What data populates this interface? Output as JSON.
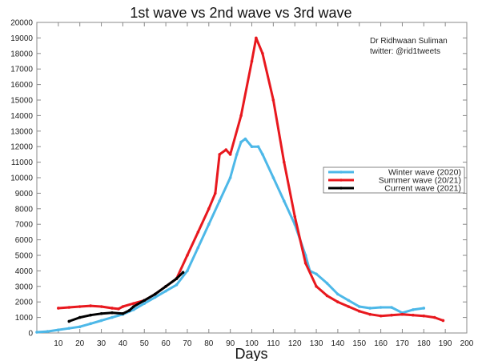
{
  "chart_data": {
    "type": "line",
    "title": "1st wave vs 2nd wave vs 3rd wave",
    "xlabel": "Days",
    "ylabel": "",
    "xlim": [
      0,
      200
    ],
    "ylim": [
      0,
      20000
    ],
    "x_ticks": [
      10,
      20,
      30,
      40,
      50,
      60,
      70,
      80,
      90,
      100,
      110,
      120,
      130,
      140,
      150,
      160,
      170,
      180,
      190,
      200
    ],
    "y_ticks": [
      0,
      1000,
      2000,
      3000,
      4000,
      5000,
      6000,
      7000,
      8000,
      9000,
      10000,
      11000,
      12000,
      13000,
      14000,
      15000,
      16000,
      17000,
      18000,
      19000,
      20000
    ],
    "grid": false,
    "legend_position": "right",
    "annotations": [
      "Dr Ridhwaan Suliman",
      "twitter: @rid1tweets"
    ],
    "series": [
      {
        "name": "Winter wave (2020)",
        "color": "#4db8e8",
        "x": [
          0,
          5,
          10,
          15,
          20,
          25,
          30,
          35,
          40,
          45,
          50,
          55,
          60,
          65,
          70,
          75,
          80,
          85,
          90,
          93,
          95,
          97,
          100,
          103,
          105,
          110,
          115,
          120,
          125,
          127,
          130,
          135,
          140,
          145,
          150,
          155,
          160,
          165,
          170,
          175,
          180
        ],
        "y": [
          50,
          100,
          200,
          300,
          400,
          600,
          800,
          1000,
          1200,
          1500,
          1900,
          2300,
          2700,
          3100,
          4000,
          5500,
          7000,
          8500,
          10000,
          11500,
          12300,
          12500,
          12000,
          12000,
          11500,
          10000,
          8500,
          7000,
          5000,
          4000,
          3800,
          3200,
          2500,
          2100,
          1700,
          1600,
          1650,
          1650,
          1300,
          1500,
          1600
        ]
      },
      {
        "name": "Summer wave (20/21)",
        "color": "#e8181e",
        "x": [
          10,
          15,
          20,
          25,
          30,
          35,
          38,
          40,
          45,
          50,
          55,
          60,
          65,
          70,
          75,
          80,
          83,
          85,
          88,
          90,
          95,
          100,
          102,
          105,
          110,
          115,
          120,
          125,
          130,
          135,
          140,
          145,
          150,
          155,
          160,
          165,
          170,
          175,
          180,
          185,
          189
        ],
        "y": [
          1600,
          1650,
          1700,
          1750,
          1700,
          1600,
          1550,
          1700,
          1900,
          2100,
          2500,
          3000,
          3500,
          5000,
          6500,
          8000,
          9000,
          11500,
          11800,
          11500,
          14000,
          17500,
          19000,
          18000,
          15000,
          11000,
          7500,
          4500,
          3000,
          2400,
          2000,
          1700,
          1400,
          1200,
          1100,
          1150,
          1200,
          1150,
          1100,
          1000,
          800
        ]
      },
      {
        "name": "Current wave (2021)",
        "color": "#000000",
        "x": [
          15,
          20,
          25,
          30,
          35,
          40,
          43,
          45,
          50,
          55,
          60,
          65,
          68
        ],
        "y": [
          750,
          1000,
          1150,
          1250,
          1300,
          1250,
          1450,
          1700,
          2100,
          2500,
          3000,
          3500,
          3900
        ]
      }
    ]
  }
}
